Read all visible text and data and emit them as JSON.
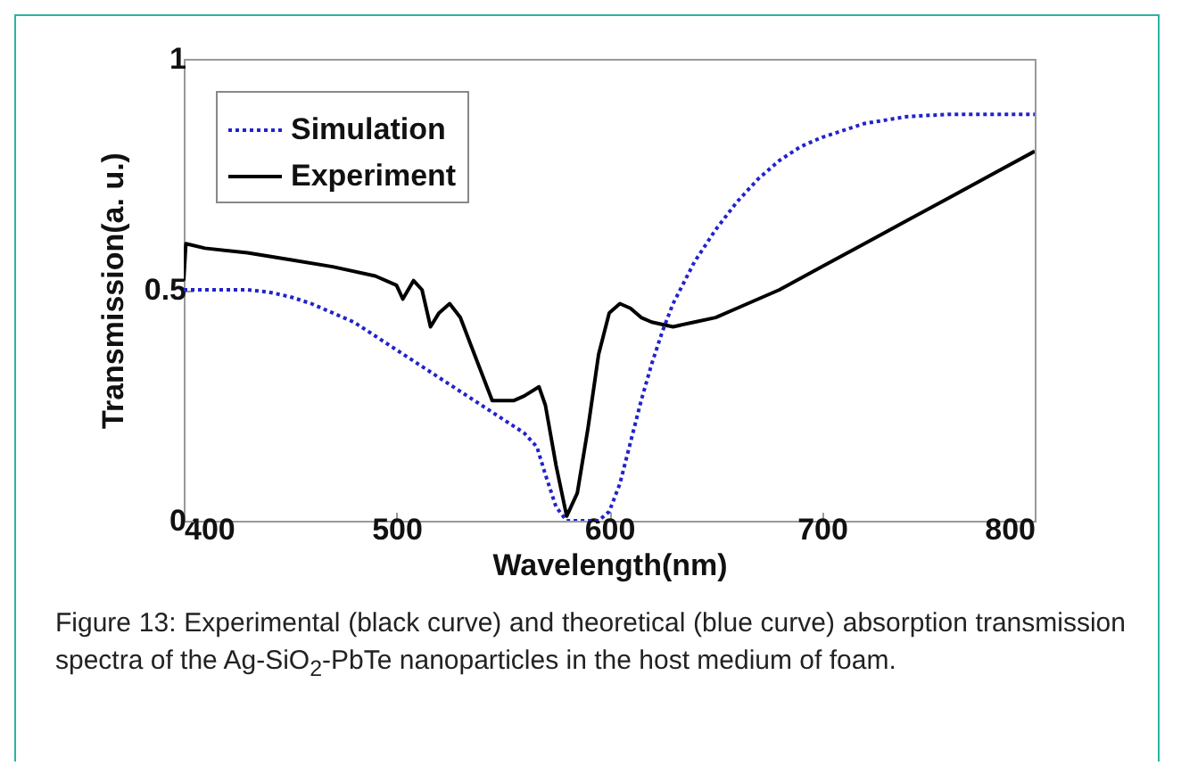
{
  "chart_data": {
    "type": "line",
    "xlabel": "Wavelength(nm)",
    "ylabel": "Transmission(a. u.)",
    "xlim": [
      400,
      800
    ],
    "xticks": [
      400,
      500,
      600,
      700,
      800
    ],
    "ylim": [
      0,
      1
    ],
    "yticks": [
      0,
      0.5,
      1
    ],
    "grid": false,
    "legend": "top left",
    "annotations": [
      "Figure 13: Experimental (black curve) and theoretical (blue curve) absorption transmission spectra of the Ag-SiO$_{2}$-PbTe nanoparticles in the host medium of foam."
    ],
    "series": [
      {
        "name": "Simulation",
        "color": "#2222cc",
        "line_style": "dotted",
        "x": [
          400,
          410,
          420,
          430,
          440,
          450,
          460,
          470,
          480,
          490,
          500,
          510,
          520,
          530,
          540,
          550,
          560,
          566,
          570,
          575,
          580,
          585,
          590,
          595,
          600,
          605,
          610,
          615,
          620,
          625,
          630,
          640,
          650,
          660,
          670,
          680,
          690,
          700,
          720,
          740,
          760,
          780,
          800
        ],
        "values": [
          0.5,
          0.5,
          0.5,
          0.5,
          0.495,
          0.485,
          0.47,
          0.45,
          0.43,
          0.4,
          0.37,
          0.34,
          0.31,
          0.28,
          0.25,
          0.22,
          0.19,
          0.16,
          0.1,
          0.03,
          0.0,
          0.0,
          0.0,
          0.0,
          0.02,
          0.08,
          0.17,
          0.26,
          0.34,
          0.41,
          0.47,
          0.56,
          0.63,
          0.69,
          0.74,
          0.78,
          0.81,
          0.83,
          0.86,
          0.875,
          0.88,
          0.88,
          0.88
        ]
      },
      {
        "name": "Experiment",
        "color": "#000000",
        "line_style": "solid",
        "x": [
          400,
          401,
          410,
          430,
          450,
          470,
          490,
          500,
          503,
          508,
          512,
          516,
          520,
          525,
          530,
          535,
          540,
          545,
          550,
          555,
          560,
          567,
          570,
          575,
          580,
          585,
          590,
          595,
          600,
          605,
          610,
          615,
          620,
          630,
          640,
          650,
          660,
          680,
          700,
          720,
          740,
          760,
          780,
          800
        ],
        "values": [
          0.52,
          0.6,
          0.59,
          0.58,
          0.565,
          0.55,
          0.53,
          0.51,
          0.48,
          0.52,
          0.5,
          0.42,
          0.45,
          0.47,
          0.44,
          0.38,
          0.32,
          0.26,
          0.26,
          0.26,
          0.27,
          0.29,
          0.25,
          0.12,
          0.01,
          0.06,
          0.2,
          0.36,
          0.45,
          0.47,
          0.46,
          0.44,
          0.43,
          0.42,
          0.43,
          0.44,
          0.46,
          0.5,
          0.55,
          0.6,
          0.65,
          0.7,
          0.75,
          0.8
        ]
      }
    ]
  }
}
